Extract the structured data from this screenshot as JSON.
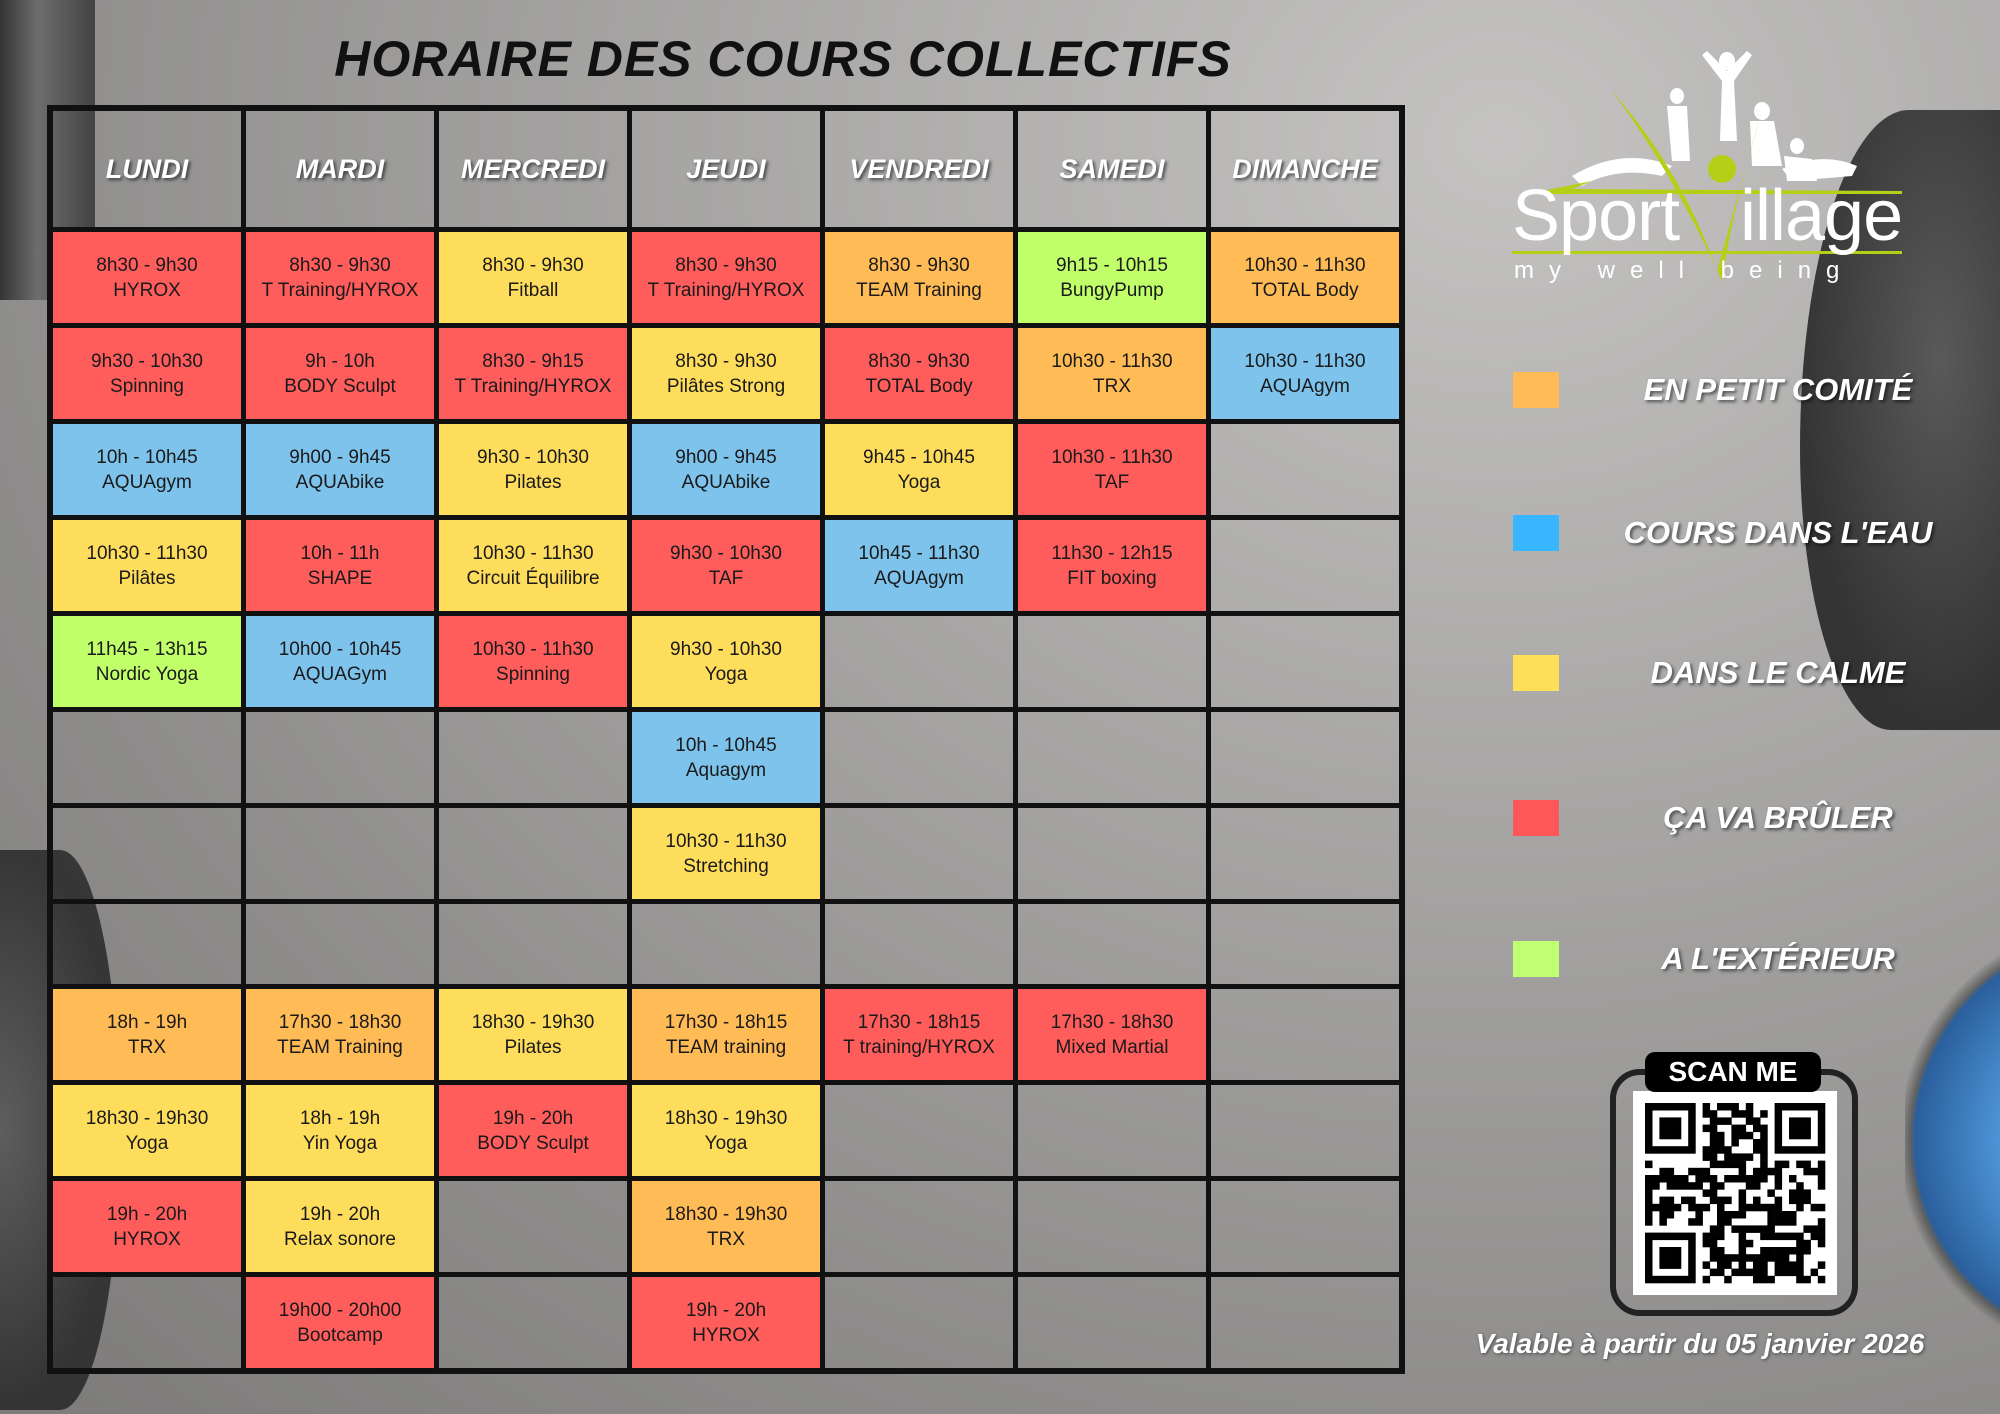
{
  "title": "HORAIRE DES COURS COLLECTIFS",
  "days": [
    "LUNDI",
    "MARDI",
    "MERCREDI",
    "JEUDI",
    "VENDREDI",
    "SAMEDI",
    "DIMANCHE"
  ],
  "colors": {
    "red": "#ff5c5c",
    "orange": "#ffbb55",
    "yellow": "#ffdd5c",
    "blue": "#7dc3ec",
    "green": "#c0ff6a"
  },
  "rows": [
    [
      {
        "time": "8h30 - 9h30",
        "name": "HYROX",
        "cat": "red"
      },
      {
        "time": "8h30 - 9h30",
        "name": "T Training/HYROX",
        "cat": "red"
      },
      {
        "time": "8h30 - 9h30",
        "name": "Fitball",
        "cat": "yellow"
      },
      {
        "time": "8h30 - 9h30",
        "name": "T Training/HYROX",
        "cat": "red"
      },
      {
        "time": "8h30 - 9h30",
        "name": "TEAM Training",
        "cat": "orange"
      },
      {
        "time": "9h15 - 10h15",
        "name": "BungyPump",
        "cat": "green"
      },
      {
        "time": "10h30 - 11h30",
        "name": "TOTAL Body",
        "cat": "orange"
      }
    ],
    [
      {
        "time": "9h30 - 10h30",
        "name": "Spinning",
        "cat": "red"
      },
      {
        "time": "9h - 10h",
        "name": "BODY Sculpt",
        "cat": "red"
      },
      {
        "time": "8h30 - 9h15",
        "name": "T Training/HYROX",
        "cat": "red"
      },
      {
        "time": "8h30 - 9h30",
        "name": "Pilâtes Strong",
        "cat": "yellow"
      },
      {
        "time": "8h30 - 9h30",
        "name": "TOTAL Body",
        "cat": "red"
      },
      {
        "time": "10h30 - 11h30",
        "name": "TRX",
        "cat": "orange"
      },
      {
        "time": "10h30 - 11h30",
        "name": "AQUAgym",
        "cat": "blue"
      }
    ],
    [
      {
        "time": "10h - 10h45",
        "name": "AQUAgym",
        "cat": "blue"
      },
      {
        "time": "9h00 - 9h45",
        "name": "AQUAbike",
        "cat": "blue"
      },
      {
        "time": "9h30 - 10h30",
        "name": "Pilates",
        "cat": "yellow"
      },
      {
        "time": "9h00 - 9h45",
        "name": "AQUAbike",
        "cat": "blue"
      },
      {
        "time": "9h45 - 10h45",
        "name": "Yoga",
        "cat": "yellow"
      },
      {
        "time": "10h30 - 11h30",
        "name": "TAF",
        "cat": "red"
      },
      null
    ],
    [
      {
        "time": "10h30 - 11h30",
        "name": "Pilâtes",
        "cat": "yellow"
      },
      {
        "time": "10h - 11h",
        "name": "SHAPE",
        "cat": "red"
      },
      {
        "time": "10h30 - 11h30",
        "name": "Circuit Équilibre",
        "cat": "yellow"
      },
      {
        "time": "9h30 - 10h30",
        "name": "TAF",
        "cat": "red"
      },
      {
        "time": "10h45 - 11h30",
        "name": "AQUAgym",
        "cat": "blue"
      },
      {
        "time": "11h30 - 12h15",
        "name": "FIT boxing",
        "cat": "red"
      },
      null
    ],
    [
      {
        "time": "11h45 - 13h15",
        "name": "Nordic Yoga",
        "cat": "green"
      },
      {
        "time": "10h00 - 10h45",
        "name": "AQUAGym",
        "cat": "blue"
      },
      {
        "time": "10h30 - 11h30",
        "name": "Spinning",
        "cat": "red"
      },
      {
        "time": "9h30 - 10h30",
        "name": "Yoga",
        "cat": "yellow"
      },
      null,
      null,
      null
    ],
    [
      null,
      null,
      null,
      {
        "time": "10h - 10h45",
        "name": "Aquagym",
        "cat": "blue"
      },
      null,
      null,
      null
    ],
    [
      null,
      null,
      null,
      {
        "time": "10h30 - 11h30",
        "name": "Stretching",
        "cat": "yellow"
      },
      null,
      null,
      null
    ],
    [
      null,
      null,
      null,
      null,
      null,
      null,
      null
    ],
    [
      {
        "time": "18h - 19h",
        "name": "TRX",
        "cat": "orange"
      },
      {
        "time": "17h30 - 18h30",
        "name": "TEAM Training",
        "cat": "orange"
      },
      {
        "time": "18h30 - 19h30",
        "name": "Pilates",
        "cat": "yellow"
      },
      {
        "time": "17h30 - 18h15",
        "name": "TEAM training",
        "cat": "orange"
      },
      {
        "time": "17h30 - 18h15",
        "name": "T training/HYROX",
        "cat": "red"
      },
      {
        "time": "17h30 - 18h30",
        "name": "Mixed Martial",
        "cat": "red"
      },
      null
    ],
    [
      {
        "time": "18h30 - 19h30",
        "name": "Yoga",
        "cat": "yellow"
      },
      {
        "time": "18h - 19h",
        "name": "Yin Yoga",
        "cat": "yellow"
      },
      {
        "time": "19h - 20h",
        "name": "BODY Sculpt",
        "cat": "red"
      },
      {
        "time": "18h30 - 19h30",
        "name": "Yoga",
        "cat": "yellow"
      },
      null,
      null,
      null
    ],
    [
      {
        "time": "19h - 20h",
        "name": "HYROX",
        "cat": "red"
      },
      {
        "time": "19h - 20h",
        "name": "Relax sonore",
        "cat": "yellow"
      },
      null,
      {
        "time": "18h30 - 19h30",
        "name": "TRX",
        "cat": "orange"
      },
      null,
      null,
      null
    ],
    [
      null,
      {
        "time": "19h00 - 20h00",
        "name": "Bootcamp",
        "cat": "red"
      },
      null,
      {
        "time": "19h - 20h",
        "name": "HYROX",
        "cat": "red"
      },
      null,
      null,
      null
    ]
  ],
  "logo": {
    "word1": "Sport",
    "letter": "V",
    "word2": "illage",
    "tagline": "my well being",
    "accent": "#b5cf16"
  },
  "legend": [
    {
      "label": "EN PETIT COMITÉ",
      "color": "#ffbb55"
    },
    {
      "label": "COURS DANS L'EAU",
      "color": "#38b6ff"
    },
    {
      "label": "DANS LE CALME",
      "color": "#ffde59"
    },
    {
      "label": "ÇA VA BRÛLER",
      "color": "#ff5757"
    },
    {
      "label": "A L'EXTÉRIEUR",
      "color": "#c1ff72"
    }
  ],
  "qr": {
    "label": "SCAN ME"
  },
  "validity": "Valable à partir du 05 janvier 2026"
}
